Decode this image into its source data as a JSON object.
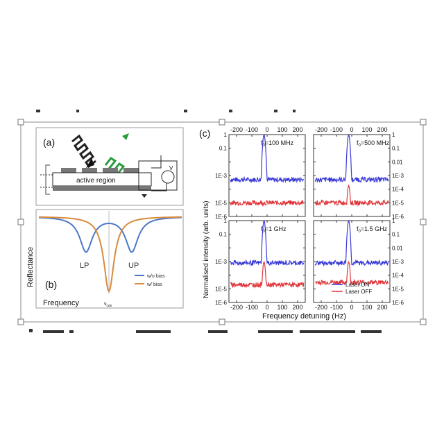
{
  "figure": {
    "panel_a": {
      "label": "(a)",
      "region_label": "active region",
      "meter_label": "V"
    },
    "panel_b": {
      "label": "(b)",
      "ylabel": "Reflectance",
      "xlabel": "Frequency",
      "x_mark": "ν",
      "x_mark_sub": "cav",
      "peak_lp": "LP",
      "peak_up": "UP",
      "legend": [
        {
          "name": "w/o bias",
          "color": "#4a78c8"
        },
        {
          "name": "w/ bias",
          "color": "#d88a3c"
        }
      ]
    },
    "panel_c": {
      "label": "(c)",
      "ylabel": "Normalised intensity (arb. units)",
      "xlabel": "Frequency detuning (Hz)",
      "x_ticks": [
        "-200",
        "-100",
        "0",
        "100",
        "200"
      ],
      "y_ticks_left": [
        "0.1",
        "1E-3",
        "1E-5"
      ],
      "y_ticks_left_full": [
        "1",
        "0.1",
        "0.01",
        "1E-3",
        "1E-4",
        "1E-5",
        "1E-6"
      ],
      "y_ticks_right": [
        "1",
        "0.1",
        "0.01",
        "1E-3",
        "1E-4",
        "1E-5",
        "1E-6"
      ],
      "subplots": [
        {
          "f_label": "f",
          "f_sub": "0",
          "f_value": "=100 MHz"
        },
        {
          "f_label": "f",
          "f_sub": "0",
          "f_value": "=500 MHz"
        },
        {
          "f_label": "f",
          "f_sub": "0",
          "f_value": "=1 GHz"
        },
        {
          "f_label": "f",
          "f_sub": "0",
          "f_value": "=1.5 GHz"
        }
      ],
      "legend": [
        {
          "name": "Laser ON",
          "color": "#3a3ad8"
        },
        {
          "name": "Laser OFF",
          "color": "#e0363b"
        }
      ]
    }
  },
  "chart_data": {
    "type": "line",
    "xlabel": "Frequency detuning (Hz)",
    "ylabel": "Normalised intensity (arb. units)",
    "xlim": [
      -250,
      250
    ],
    "ylim": [
      1e-06,
      1
    ],
    "yscale": "log",
    "panels": [
      {
        "title": "f0=100 MHz",
        "series": [
          {
            "name": "Laser ON",
            "floor": 0.0005,
            "peak": 1.0,
            "peak_x": -20
          },
          {
            "name": "Laser OFF",
            "floor": 1e-05,
            "peak": 1e-05,
            "peak_x": -20
          }
        ]
      },
      {
        "title": "f0=500 MHz",
        "series": [
          {
            "name": "Laser ON",
            "floor": 0.0005,
            "peak": 1.0,
            "peak_x": -20
          },
          {
            "name": "Laser OFF",
            "floor": 1e-05,
            "peak": 0.0002,
            "peak_x": -20
          }
        ]
      },
      {
        "title": "f0=1 GHz",
        "series": [
          {
            "name": "Laser ON",
            "floor": 0.0008,
            "peak": 1.0,
            "peak_x": -20
          },
          {
            "name": "Laser OFF",
            "floor": 2e-05,
            "peak": 0.001,
            "peak_x": -20
          }
        ]
      },
      {
        "title": "f0=1.5 GHz",
        "series": [
          {
            "name": "Laser ON",
            "floor": 0.0008,
            "peak": 1.0,
            "peak_x": -20
          },
          {
            "name": "Laser OFF",
            "floor": 3e-05,
            "peak": 0.001,
            "peak_x": -20
          }
        ]
      }
    ]
  }
}
